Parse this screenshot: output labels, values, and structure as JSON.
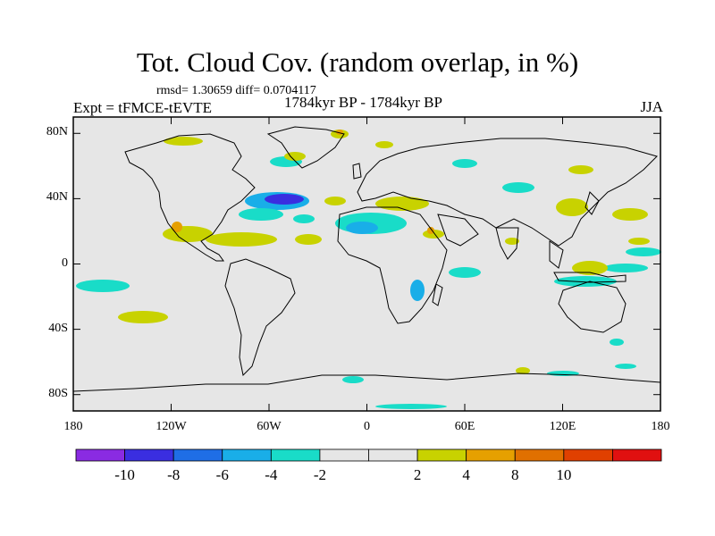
{
  "title": "Tot. Cloud Cov. (random overlap, in %)",
  "stats_text": "rmsd= 1.30659 diff= 0.0704117",
  "experiment": "Expt = tFMCE-tEVTE",
  "period": "1784kyr BP - 1784kyr BP",
  "season": "JJA",
  "map": {
    "lat_ticks": [
      {
        "label": "80N",
        "lat": 80
      },
      {
        "label": "40N",
        "lat": 40
      },
      {
        "label": "0",
        "lat": 0
      },
      {
        "label": "40S",
        "lat": -40
      },
      {
        "label": "80S",
        "lat": -80
      }
    ],
    "lon_ticks": [
      {
        "label": "180",
        "lon": -180
      },
      {
        "label": "120W",
        "lon": -120
      },
      {
        "label": "60W",
        "lon": -60
      },
      {
        "label": "0",
        "lon": 0
      },
      {
        "label": "60E",
        "lon": 60
      },
      {
        "label": "120E",
        "lon": 120
      },
      {
        "label": "180",
        "lon": 180
      }
    ],
    "lon_range": [
      -180,
      180
    ],
    "lat_range": [
      -90,
      90
    ],
    "background_color": "#e6e6e6"
  },
  "colorbar": {
    "colors": [
      "#8a2be2",
      "#3a2ee0",
      "#1f6ee6",
      "#19aee8",
      "#19dcc8",
      "#e6e6e6",
      "#e6e6e6",
      "#c8d200",
      "#e6a000",
      "#e07000",
      "#e04000",
      "#e01010"
    ],
    "labels": [
      "-10",
      "-8",
      "-6",
      "-4",
      "-2",
      "2",
      "4",
      "8",
      "10"
    ]
  }
}
